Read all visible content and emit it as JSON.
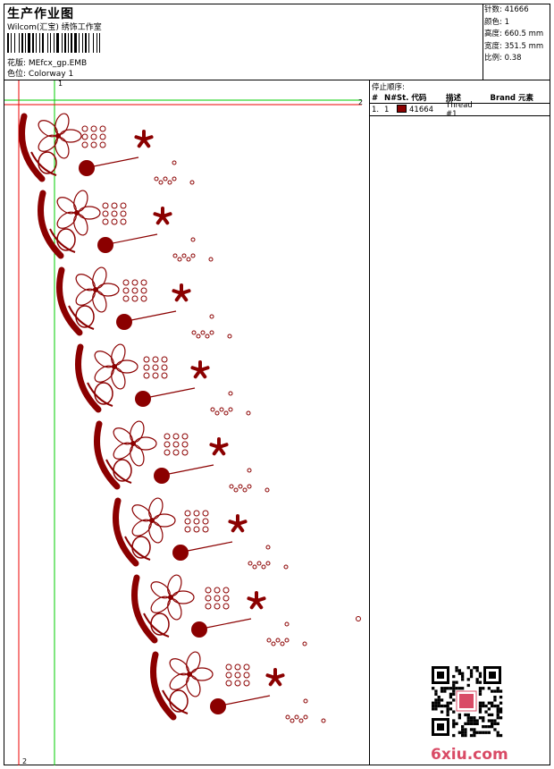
{
  "header": {
    "title": "生产作业图",
    "studio": "Wilcom(汇宝) 绣饰工作室",
    "design_label": "花版:",
    "design_name": "MEfcx_gp.EMB",
    "color_label": "色位:",
    "colorway": "Colorway 1"
  },
  "stats": [
    {
      "label": "针数:",
      "value": "41666"
    },
    {
      "label": "颜色:",
      "value": "1"
    },
    {
      "label": "高度:",
      "value": "660.5 mm"
    },
    {
      "label": "宽度:",
      "value": "351.5 mm"
    },
    {
      "label": "比例:",
      "value": "0.38"
    }
  ],
  "sequence": {
    "caption": "停止顺序:",
    "columns": [
      "#",
      "N#",
      "St.",
      "代码",
      "描述",
      "Brand",
      "元素"
    ],
    "rows": [
      {
        "index": "1.",
        "needle": "1",
        "code": "41664",
        "description": "Thread #1",
        "brand": "",
        "element": ""
      }
    ]
  },
  "markers": {
    "v_top": "1",
    "h_right": "2",
    "v_bottom": "2"
  },
  "watermark": {
    "site": "6xiu.com",
    "stamp": "以色之"
  },
  "colors": {
    "thread": "#8b0000",
    "guide_green": "#00cc00",
    "guide_red": "#ee0000",
    "watermark": "#d94b66"
  }
}
